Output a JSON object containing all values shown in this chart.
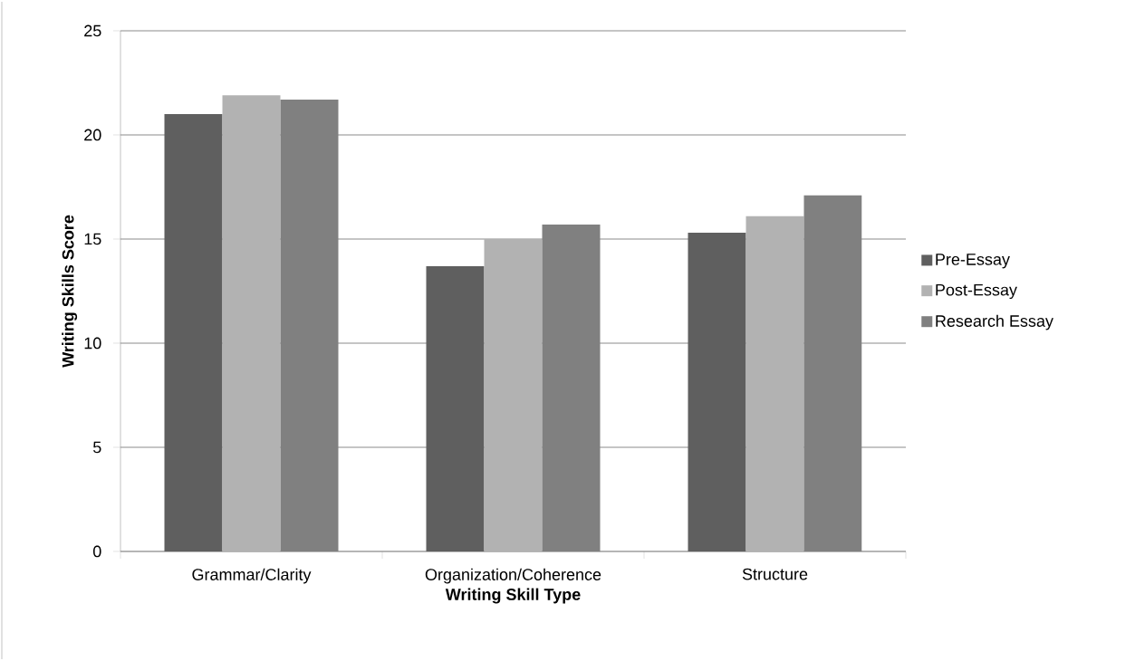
{
  "chart_data": {
    "type": "bar",
    "xlabel": "Writing Skill Type",
    "ylabel": "Writing Skills Score",
    "categories": [
      "Grammar/Clarity",
      "Organization/Coherence",
      "Structure"
    ],
    "series": [
      {
        "name": "Pre-Essay",
        "color": "#5f5f5f",
        "values": [
          21.0,
          13.7,
          15.3
        ]
      },
      {
        "name": "Post-Essay",
        "color": "#b2b2b2",
        "values": [
          21.9,
          15.0,
          16.1
        ]
      },
      {
        "name": "Research Essay",
        "color": "#808080",
        "values": [
          21.7,
          15.7,
          17.1
        ]
      }
    ],
    "ylim": [
      0,
      25
    ],
    "yticks": [
      0,
      5,
      10,
      15,
      20,
      25
    ],
    "grid": "y",
    "legend": "right"
  }
}
